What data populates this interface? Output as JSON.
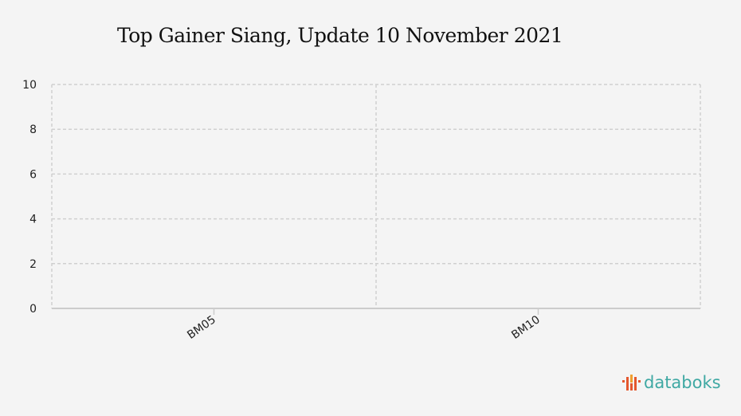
{
  "chart_data": {
    "type": "bar",
    "title": "Top Gainer Siang, Update 10 November 2021",
    "categories": [
      "BM05",
      "BM10"
    ],
    "values": [
      0,
      0
    ],
    "xlabel": "",
    "ylabel": "",
    "ylim": [
      0,
      10
    ],
    "yticks": [
      0,
      2,
      4,
      6,
      8,
      10
    ],
    "grid": true
  },
  "brand": {
    "name": "databoks",
    "color": "#3fa8a3",
    "icon_color": "#e4572e"
  }
}
